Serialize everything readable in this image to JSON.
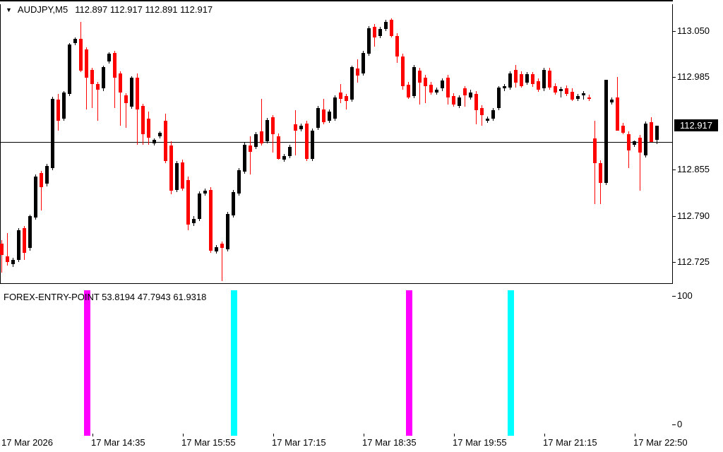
{
  "window": {
    "background": "#FFFFFF",
    "border_color": "#000000"
  },
  "icons": {
    "symbol_marker": "▼"
  },
  "main_chart": {
    "symbol_period": "AUDJPY,M5",
    "ohlc_text": "112.897 112.917 112.891 112.917",
    "current_price": "112.917",
    "y_tick_labels": [
      "113.050",
      "112.985",
      "112.855",
      "112.790",
      "112.725"
    ]
  },
  "indicator": {
    "label_text": "FOREX-ENTRY-POINT 53.8194 47.7943 61.9318",
    "scale_top": "100",
    "scale_bottom": "0"
  },
  "time_axis": {
    "labels": [
      {
        "text": "17 Mar 2026",
        "bar": 0
      },
      {
        "text": "17 Mar 14:35",
        "bar": 16
      },
      {
        "text": "17 Mar 15:55",
        "bar": 32
      },
      {
        "text": "17 Mar 17:15",
        "bar": 48
      },
      {
        "text": "17 Mar 18:35",
        "bar": 64
      },
      {
        "text": "17 Mar 19:55",
        "bar": 80
      },
      {
        "text": "17 Mar 21:15",
        "bar": 96
      },
      {
        "text": "17 Mar 22:50",
        "bar": 112
      }
    ],
    "tick_bars": [
      16,
      32,
      48,
      64,
      80,
      96,
      112
    ]
  },
  "chart_data": [
    {
      "type": "candlestick",
      "title": "AUDJPY,M5",
      "ohlc_current": {
        "open": 112.897,
        "high": 112.917,
        "low": 112.891,
        "close": 112.917
      },
      "y_axis_ticks": [
        113.05,
        112.985,
        112.855,
        112.79,
        112.725
      ],
      "current_price": 112.917,
      "ylim": [
        112.692,
        113.086
      ],
      "x_tick_labels": [
        "17 Mar 2026",
        "17 Mar 14:35",
        "17 Mar 15:55",
        "17 Mar 17:15",
        "17 Mar 18:35",
        "17 Mar 19:55",
        "17 Mar 21:15",
        "17 Mar 22:50"
      ],
      "grid": false,
      "bull_color": "#000000",
      "bear_color": "#FF0000",
      "candles": [
        [
          112.751,
          112.756,
          112.71,
          112.735
        ],
        [
          112.733,
          112.766,
          112.72,
          112.725
        ],
        [
          112.722,
          112.731,
          112.718,
          112.728
        ],
        [
          112.728,
          112.773,
          112.725,
          112.77
        ],
        [
          112.773,
          112.776,
          112.728,
          112.738
        ],
        [
          112.745,
          112.792,
          112.741,
          112.79
        ],
        [
          112.788,
          112.848,
          112.785,
          112.845
        ],
        [
          112.85,
          112.853,
          112.798,
          112.83
        ],
        [
          112.835,
          112.863,
          112.831,
          112.86
        ],
        [
          112.857,
          112.958,
          112.854,
          112.955
        ],
        [
          112.954,
          112.962,
          112.91,
          112.924
        ],
        [
          112.927,
          112.966,
          112.924,
          112.964
        ],
        [
          112.962,
          113.033,
          112.959,
          113.031
        ],
        [
          113.033,
          113.041,
          113.03,
          113.039
        ],
        [
          113.039,
          113.063,
          112.992,
          112.994
        ],
        [
          113.024,
          113.027,
          112.94,
          112.984
        ],
        [
          112.995,
          112.998,
          112.942,
          112.975
        ],
        [
          112.975,
          112.978,
          112.924,
          112.967
        ],
        [
          112.969,
          113.001,
          112.966,
          112.999
        ],
        [
          113.007,
          113.02,
          113.004,
          113.018
        ],
        [
          113.019,
          113.022,
          112.942,
          112.984
        ],
        [
          112.99,
          112.993,
          112.917,
          112.964
        ],
        [
          112.96,
          112.963,
          112.914,
          112.949
        ],
        [
          112.944,
          112.986,
          112.941,
          112.984
        ],
        [
          112.984,
          112.99,
          112.89,
          112.94
        ],
        [
          112.945,
          112.948,
          112.89,
          112.905
        ],
        [
          112.927,
          112.937,
          112.89,
          112.9
        ],
        [
          112.892,
          112.899,
          112.889,
          112.897
        ],
        [
          112.902,
          112.909,
          112.899,
          112.907
        ],
        [
          112.924,
          112.934,
          112.864,
          112.867
        ],
        [
          112.889,
          112.895,
          112.82,
          112.825
        ],
        [
          112.826,
          112.867,
          112.823,
          112.864
        ],
        [
          112.865,
          112.869,
          112.825,
          112.828
        ],
        [
          112.84,
          112.845,
          112.77,
          112.778
        ],
        [
          112.78,
          112.79,
          112.776,
          112.786
        ],
        [
          112.786,
          112.824,
          112.783,
          112.821
        ],
        [
          112.821,
          112.828,
          112.818,
          112.825
        ],
        [
          112.826,
          112.83,
          112.738,
          112.741
        ],
        [
          112.74,
          112.749,
          112.737,
          112.746
        ],
        [
          112.751,
          112.754,
          112.698,
          112.745
        ],
        [
          112.743,
          112.796,
          112.74,
          112.793
        ],
        [
          112.791,
          112.826,
          112.788,
          112.823
        ],
        [
          112.821,
          112.857,
          112.818,
          112.854
        ],
        [
          112.852,
          112.893,
          112.849,
          112.89
        ],
        [
          112.889,
          112.902,
          112.848,
          112.88
        ],
        [
          112.887,
          112.908,
          112.884,
          112.905
        ],
        [
          112.909,
          112.955,
          112.889,
          112.892
        ],
        [
          112.895,
          112.928,
          112.892,
          112.925
        ],
        [
          112.929,
          112.932,
          112.879,
          112.905
        ],
        [
          112.902,
          112.906,
          112.869,
          112.87
        ],
        [
          112.869,
          112.877,
          112.866,
          112.874
        ],
        [
          112.874,
          112.89,
          112.871,
          112.887
        ],
        [
          112.919,
          112.939,
          112.875,
          112.91
        ],
        [
          112.912,
          112.92,
          112.909,
          112.917
        ],
        [
          112.92,
          112.924,
          112.867,
          112.87
        ],
        [
          112.87,
          112.913,
          112.867,
          112.91
        ],
        [
          112.914,
          112.945,
          112.911,
          112.942
        ],
        [
          112.94,
          112.955,
          112.919,
          112.922
        ],
        [
          112.924,
          112.94,
          112.921,
          112.937
        ],
        [
          112.927,
          112.96,
          112.924,
          112.957
        ],
        [
          112.964,
          112.975,
          112.949,
          112.955
        ],
        [
          112.959,
          112.962,
          112.94,
          112.952
        ],
        [
          112.954,
          113.001,
          112.951,
          112.999
        ],
        [
          112.997,
          113.01,
          112.977,
          112.987
        ],
        [
          112.99,
          113.022,
          112.987,
          113.019
        ],
        [
          113.018,
          113.057,
          113.015,
          113.054
        ],
        [
          113.056,
          113.06,
          113.028,
          113.041
        ],
        [
          113.043,
          113.056,
          113.04,
          113.053
        ],
        [
          113.053,
          113.066,
          113.05,
          113.063
        ],
        [
          113.066,
          113.068,
          113.041,
          113.043
        ],
        [
          113.043,
          113.047,
          113.005,
          113.014
        ],
        [
          113.014,
          113.018,
          112.967,
          112.972
        ],
        [
          112.974,
          112.978,
          112.955,
          112.957
        ],
        [
          112.959,
          113.002,
          112.956,
          112.999
        ],
        [
          112.994,
          112.998,
          112.947,
          112.977
        ],
        [
          112.984,
          112.988,
          112.949,
          112.972
        ],
        [
          112.974,
          112.978,
          112.961,
          112.964
        ],
        [
          112.964,
          112.97,
          112.961,
          112.967
        ],
        [
          112.969,
          112.983,
          112.966,
          112.98
        ],
        [
          112.984,
          112.988,
          112.947,
          112.957
        ],
        [
          112.959,
          112.963,
          112.944,
          112.947
        ],
        [
          112.945,
          112.96,
          112.942,
          112.957
        ],
        [
          112.969,
          112.972,
          112.944,
          112.96
        ],
        [
          112.957,
          112.967,
          112.954,
          112.964
        ],
        [
          112.962,
          112.966,
          112.919,
          112.939
        ],
        [
          112.942,
          112.946,
          112.917,
          112.932
        ],
        [
          112.924,
          112.93,
          112.921,
          112.927
        ],
        [
          112.927,
          112.942,
          112.924,
          112.939
        ],
        [
          112.942,
          112.972,
          112.939,
          112.97
        ],
        [
          112.969,
          112.975,
          112.966,
          112.972
        ],
        [
          112.97,
          112.993,
          112.967,
          112.99
        ],
        [
          112.995,
          113.002,
          112.97,
          112.977
        ],
        [
          112.989,
          112.993,
          112.97,
          112.972
        ],
        [
          112.977,
          112.992,
          112.974,
          112.989
        ],
        [
          112.989,
          112.992,
          112.971,
          112.975
        ],
        [
          112.979,
          112.983,
          112.965,
          112.967
        ],
        [
          112.969,
          112.998,
          112.966,
          112.995
        ],
        [
          112.994,
          112.998,
          112.967,
          112.97
        ],
        [
          112.972,
          112.976,
          112.961,
          112.964
        ],
        [
          112.966,
          112.971,
          112.957,
          112.968
        ],
        [
          112.969,
          112.973,
          112.959,
          112.962
        ],
        [
          112.965,
          112.969,
          112.952,
          112.954
        ],
        [
          112.955,
          112.962,
          112.952,
          112.959
        ],
        [
          112.96,
          112.966,
          112.954,
          112.963
        ],
        [
          112.957,
          112.961,
          112.952,
          112.955
        ],
        [
          112.899,
          112.924,
          112.806,
          112.864
        ],
        [
          112.864,
          112.868,
          112.806,
          112.836
        ],
        [
          112.836,
          112.981,
          112.833,
          112.981
        ],
        [
          112.95,
          112.957,
          112.947,
          112.954
        ],
        [
          112.957,
          112.985,
          112.91,
          112.91
        ],
        [
          112.917,
          112.921,
          112.905,
          112.907
        ],
        [
          112.905,
          112.909,
          112.857,
          112.882
        ],
        [
          112.89,
          112.896,
          112.887,
          112.895
        ],
        [
          112.9,
          112.904,
          112.825,
          112.879
        ],
        [
          112.875,
          112.923,
          112.872,
          112.92
        ],
        [
          112.922,
          112.929,
          112.894,
          112.894
        ],
        [
          112.897,
          112.917,
          112.891,
          112.917
        ]
      ]
    },
    {
      "type": "vertical-signal-lines",
      "title": "FOREX-ENTRY-POINT",
      "values": [
        53.8194,
        47.7943,
        61.9318
      ],
      "ylim": [
        0,
        100
      ],
      "y_axis_ticks": [
        100,
        0
      ],
      "lines": [
        {
          "bar": 15,
          "color": "#FF00FF"
        },
        {
          "bar": 41,
          "color": "#00FFFF"
        },
        {
          "bar": 72,
          "color": "#FF00FF"
        },
        {
          "bar": 90,
          "color": "#00FFFF"
        }
      ]
    }
  ]
}
